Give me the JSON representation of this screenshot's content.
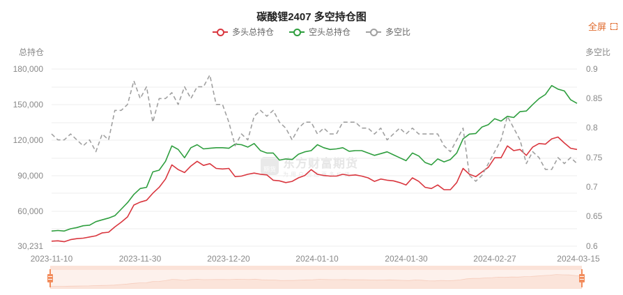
{
  "header": {
    "title": "碳酸锂2407 多空持仓图",
    "fullscreen_label": "全屏"
  },
  "legend": [
    {
      "name": "多头总持仓",
      "color": "#d9363e"
    },
    {
      "name": "空头总持仓",
      "color": "#2e9e3e"
    },
    {
      "name": "多空比",
      "color": "#a0a0a0"
    }
  ],
  "axes": {
    "left_name": "总持仓",
    "right_name": "多空比",
    "left_ticks": [
      "180,000",
      "150,000",
      "120,000",
      "90,000",
      "60,000",
      "30,231"
    ],
    "right_ticks": [
      "0.9",
      "0.85",
      "0.8",
      "0.75",
      "0.7",
      "0.65",
      "0.6"
    ],
    "x_ticks": [
      "2023-11-10",
      "2023-11-30",
      "2023-12-20",
      "2024-01-10",
      "2024-01-30",
      "2024-02-27",
      "2024-03-15"
    ]
  },
  "watermark": {
    "brand": "东方财富期货",
    "slogan": "为用户创造更多价值",
    "badge": "期货"
  },
  "chart_data": {
    "type": "line",
    "title": "碳酸锂2407 多空持仓图",
    "xlabel": "",
    "ylabel": "总持仓",
    "y2label": "多空比",
    "ylim": [
      30231,
      180000
    ],
    "y2lim": [
      0.6,
      0.9
    ],
    "grid": true,
    "legend_position": "top",
    "x_range": [
      "2023-11-10",
      "2024-03-15"
    ],
    "x_tick_labels": [
      "2023-11-10",
      "2023-11-30",
      "2023-12-20",
      "2024-01-10",
      "2024-01-30",
      "2024-02-27",
      "2024-03-15"
    ],
    "series": [
      {
        "name": "多头总持仓",
        "axis": "left",
        "color": "#d9363e",
        "values": [
          34500,
          34800,
          34000,
          35800,
          36600,
          37000,
          38000,
          39000,
          41500,
          42000,
          46500,
          50500,
          55000,
          65000,
          67500,
          69000,
          75000,
          80000,
          87000,
          99000,
          95000,
          92500,
          98000,
          102000,
          98500,
          100000,
          96000,
          95500,
          96000,
          89000,
          89500,
          91000,
          92000,
          91000,
          90500,
          86000,
          85500,
          84000,
          85000,
          88000,
          90000,
          95000,
          91000,
          90000,
          89500,
          89500,
          91000,
          90000,
          90500,
          89500,
          88000,
          85000,
          87000,
          86000,
          85500,
          84000,
          82000,
          88000,
          85000,
          80000,
          79000,
          82000,
          78000,
          78000,
          84000,
          96000,
          91000,
          89000,
          93000,
          97000,
          105000,
          105000,
          115000,
          111000,
          112000,
          107000,
          114000,
          117000,
          116500,
          121000,
          122500,
          117500,
          113000,
          112000
        ],
        "note": "approximate, read from pixels"
      },
      {
        "name": "空头总持仓",
        "axis": "left",
        "color": "#2e9e3e",
        "values": [
          43000,
          43500,
          43000,
          45000,
          46000,
          47500,
          48000,
          51000,
          52500,
          54000,
          56000,
          61500,
          67000,
          74000,
          79000,
          80000,
          93000,
          94500,
          102000,
          115000,
          112000,
          105000,
          113500,
          116000,
          112500,
          113000,
          113500,
          113500,
          113000,
          116500,
          116000,
          114000,
          117000,
          111000,
          109000,
          109000,
          103000,
          104000,
          103500,
          108000,
          110000,
          111000,
          116000,
          113500,
          112000,
          112500,
          113500,
          110500,
          111000,
          111000,
          109000,
          107000,
          108500,
          110000,
          107500,
          105000,
          102500,
          109000,
          106500,
          101000,
          99000,
          104000,
          101500,
          103500,
          109000,
          121000,
          125000,
          125500,
          131000,
          133000,
          138000,
          136000,
          140000,
          139000,
          144000,
          144500,
          150000,
          155000,
          158500,
          166000,
          163000,
          161500,
          154000,
          151000
        ],
        "note": "approximate, read from pixels"
      },
      {
        "name": "多空比",
        "axis": "right",
        "color": "#a0a0a0",
        "dashed": true,
        "values": [
          0.79,
          0.78,
          0.78,
          0.79,
          0.78,
          0.77,
          0.78,
          0.76,
          0.79,
          0.78,
          0.83,
          0.83,
          0.84,
          0.88,
          0.85,
          0.87,
          0.81,
          0.85,
          0.85,
          0.86,
          0.84,
          0.87,
          0.85,
          0.87,
          0.87,
          0.89,
          0.84,
          0.84,
          0.81,
          0.77,
          0.79,
          0.78,
          0.82,
          0.83,
          0.82,
          0.83,
          0.81,
          0.8,
          0.78,
          0.8,
          0.81,
          0.81,
          0.79,
          0.8,
          0.79,
          0.79,
          0.81,
          0.81,
          0.81,
          0.8,
          0.8,
          0.79,
          0.8,
          0.78,
          0.79,
          0.8,
          0.79,
          0.8,
          0.79,
          0.79,
          0.79,
          0.79,
          0.77,
          0.76,
          0.78,
          0.8,
          0.72,
          0.71,
          0.72,
          0.74,
          0.76,
          0.78,
          0.82,
          0.8,
          0.78,
          0.74,
          0.76,
          0.75,
          0.73,
          0.73,
          0.75,
          0.74,
          0.75,
          0.74
        ],
        "note": "approximate, read from pixels"
      }
    ]
  }
}
